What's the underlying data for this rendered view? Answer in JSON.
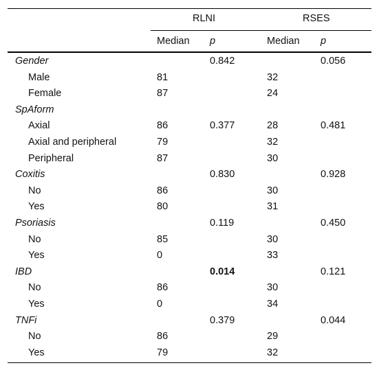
{
  "header": {
    "group1": "RLNI",
    "group2": "RSES",
    "sub": [
      "Median",
      "p",
      "Median",
      "p"
    ]
  },
  "rows": [
    {
      "type": "cat",
      "label": "Gender",
      "rlni_p": "0.842",
      "rses_p": "0.056"
    },
    {
      "type": "sub",
      "label": "Male",
      "rlni_median": "81",
      "rses_median": "32"
    },
    {
      "type": "sub",
      "label": "Female",
      "rlni_median": "87",
      "rses_median": "24"
    },
    {
      "type": "cat",
      "label": "SpAform"
    },
    {
      "type": "sub",
      "label": "Axial",
      "rlni_median": "86",
      "rlni_p": "0.377",
      "rses_median": "28",
      "rses_p": "0.481"
    },
    {
      "type": "sub",
      "label": "Axial and peripheral",
      "rlni_median": "79",
      "rses_median": "32"
    },
    {
      "type": "sub",
      "label": "Peripheral",
      "rlni_median": "87",
      "rses_median": "30"
    },
    {
      "type": "cat",
      "label": "Coxitis",
      "rlni_p": "0.830",
      "rses_p": "0.928"
    },
    {
      "type": "sub",
      "label": "No",
      "rlni_median": "86",
      "rses_median": "30"
    },
    {
      "type": "sub",
      "label": "Yes",
      "rlni_median": "80",
      "rses_median": "31"
    },
    {
      "type": "cat",
      "label": "Psoriasis",
      "rlni_p": "0.119",
      "rses_p": "0.450"
    },
    {
      "type": "sub",
      "label": "No",
      "rlni_median": "85",
      "rses_median": "30"
    },
    {
      "type": "sub",
      "label": "Yes",
      "rlni_median": "0",
      "rses_median": "33"
    },
    {
      "type": "cat",
      "label": "IBD",
      "rlni_p": "0.014",
      "rlni_p_bold": true,
      "rses_p": "0.121"
    },
    {
      "type": "sub",
      "label": "No",
      "rlni_median": "86",
      "rses_median": "30"
    },
    {
      "type": "sub",
      "label": "Yes",
      "rlni_median": "0",
      "rses_median": "34"
    },
    {
      "type": "cat",
      "label": "TNFi",
      "rlni_p": "0.379",
      "rses_p": "0.044"
    },
    {
      "type": "sub",
      "label": "No",
      "rlni_median": "86",
      "rses_median": "29"
    },
    {
      "type": "sub",
      "label": "Yes",
      "rlni_median": "79",
      "rses_median": "32"
    }
  ]
}
